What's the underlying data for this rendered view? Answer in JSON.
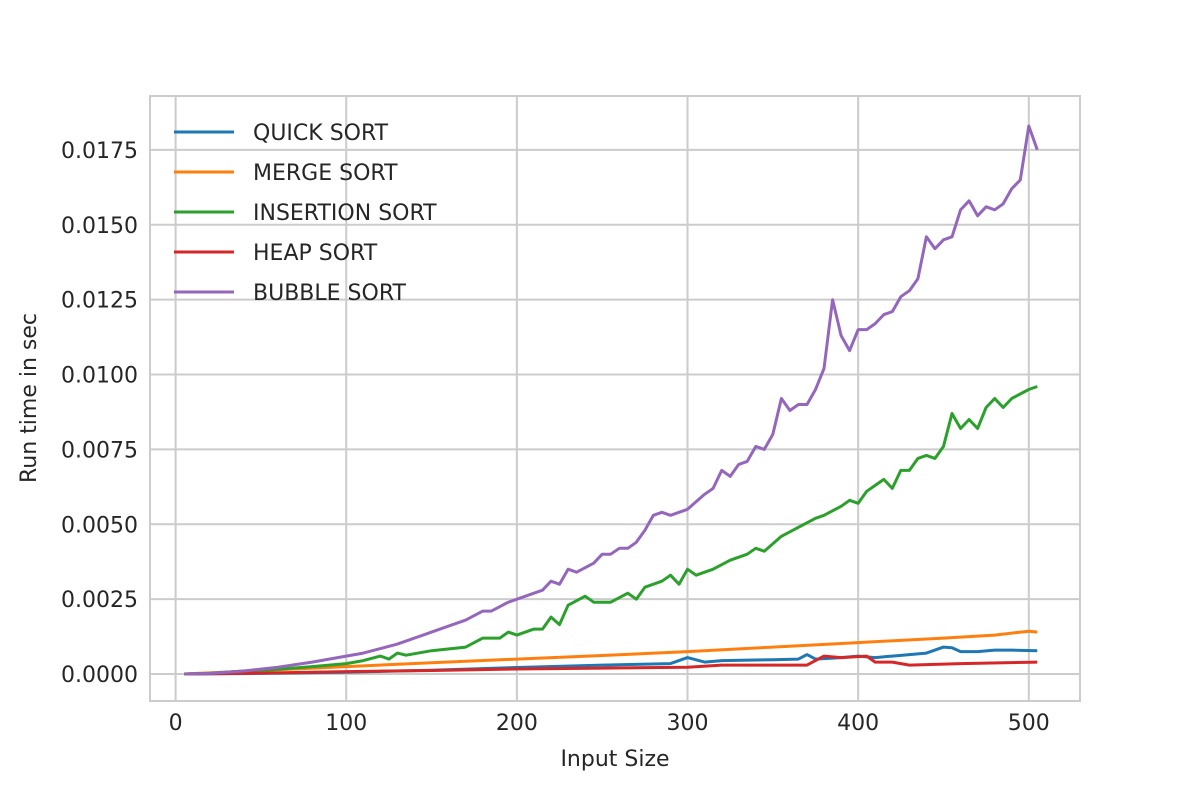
{
  "chart_data": {
    "type": "line",
    "xlabel": "Input Size",
    "ylabel": "Run time in sec",
    "xlim": [
      -15,
      530
    ],
    "ylim": [
      -0.0009,
      0.0193
    ],
    "xticks": [
      0,
      100,
      200,
      300,
      400,
      500
    ],
    "xtick_labels": [
      "0",
      "100",
      "200",
      "300",
      "400",
      "500"
    ],
    "yticks": [
      0,
      0.0025,
      0.005,
      0.0075,
      0.01,
      0.0125,
      0.015,
      0.0175
    ],
    "ytick_labels": [
      "0.0000",
      "0.0025",
      "0.0050",
      "0.0075",
      "0.0100",
      "0.0125",
      "0.0150",
      "0.0175"
    ],
    "grid": true,
    "legend": "top-left",
    "series": [
      {
        "name": "QUICK SORT",
        "color": "#1f77b4",
        "points": [
          [
            5,
            0.0
          ],
          [
            50,
            2e-05
          ],
          [
            100,
            6e-05
          ],
          [
            150,
            0.00013
          ],
          [
            200,
            0.00022
          ],
          [
            250,
            0.0003
          ],
          [
            290,
            0.00035
          ],
          [
            300,
            0.00055
          ],
          [
            310,
            0.0004
          ],
          [
            320,
            0.00045
          ],
          [
            340,
            0.00047
          ],
          [
            350,
            0.00048
          ],
          [
            365,
            0.0005
          ],
          [
            370,
            0.00065
          ],
          [
            375,
            0.0005
          ],
          [
            390,
            0.00055
          ],
          [
            400,
            0.0006
          ],
          [
            410,
            0.00055
          ],
          [
            420,
            0.0006
          ],
          [
            430,
            0.00065
          ],
          [
            440,
            0.0007
          ],
          [
            450,
            0.0009
          ],
          [
            455,
            0.00088
          ],
          [
            460,
            0.00075
          ],
          [
            470,
            0.00075
          ],
          [
            480,
            0.0008
          ],
          [
            490,
            0.0008
          ],
          [
            505,
            0.00078
          ]
        ]
      },
      {
        "name": "MERGE SORT",
        "color": "#ff7f0e",
        "points": [
          [
            5,
            0.0
          ],
          [
            50,
            0.00012
          ],
          [
            100,
            0.00025
          ],
          [
            150,
            0.00038
          ],
          [
            200,
            0.0005
          ],
          [
            250,
            0.00062
          ],
          [
            300,
            0.00075
          ],
          [
            350,
            0.0009
          ],
          [
            400,
            0.00105
          ],
          [
            450,
            0.0012
          ],
          [
            480,
            0.0013
          ],
          [
            500,
            0.00143
          ],
          [
            505,
            0.0014
          ]
        ]
      },
      {
        "name": "INSERTION SORT",
        "color": "#2ca02c",
        "points": [
          [
            5,
            0.0
          ],
          [
            20,
            2e-05
          ],
          [
            40,
            0.0001
          ],
          [
            60,
            0.00016
          ],
          [
            80,
            0.00025
          ],
          [
            100,
            0.00035
          ],
          [
            110,
            0.00045
          ],
          [
            120,
            0.0006
          ],
          [
            125,
            0.0005
          ],
          [
            130,
            0.0007
          ],
          [
            135,
            0.00063
          ],
          [
            150,
            0.00078
          ],
          [
            170,
            0.0009
          ],
          [
            180,
            0.0012
          ],
          [
            190,
            0.0012
          ],
          [
            195,
            0.0014
          ],
          [
            200,
            0.0013
          ],
          [
            210,
            0.0015
          ],
          [
            215,
            0.0015
          ],
          [
            220,
            0.0019
          ],
          [
            225,
            0.00165
          ],
          [
            230,
            0.0023
          ],
          [
            240,
            0.0026
          ],
          [
            245,
            0.0024
          ],
          [
            255,
            0.0024
          ],
          [
            265,
            0.0027
          ],
          [
            270,
            0.0025
          ],
          [
            275,
            0.0029
          ],
          [
            285,
            0.0031
          ],
          [
            290,
            0.0033
          ],
          [
            295,
            0.003
          ],
          [
            300,
            0.0035
          ],
          [
            305,
            0.0033
          ],
          [
            315,
            0.0035
          ],
          [
            325,
            0.0038
          ],
          [
            335,
            0.004
          ],
          [
            340,
            0.0042
          ],
          [
            345,
            0.0041
          ],
          [
            355,
            0.0046
          ],
          [
            365,
            0.0049
          ],
          [
            375,
            0.0052
          ],
          [
            380,
            0.0053
          ],
          [
            390,
            0.0056
          ],
          [
            395,
            0.0058
          ],
          [
            400,
            0.0057
          ],
          [
            405,
            0.0061
          ],
          [
            410,
            0.0063
          ],
          [
            415,
            0.0065
          ],
          [
            420,
            0.0062
          ],
          [
            425,
            0.0068
          ],
          [
            430,
            0.0068
          ],
          [
            435,
            0.0072
          ],
          [
            440,
            0.0073
          ],
          [
            445,
            0.0072
          ],
          [
            450,
            0.0076
          ],
          [
            455,
            0.0087
          ],
          [
            460,
            0.0082
          ],
          [
            465,
            0.0085
          ],
          [
            470,
            0.0082
          ],
          [
            475,
            0.0089
          ],
          [
            480,
            0.0092
          ],
          [
            485,
            0.0089
          ],
          [
            490,
            0.0092
          ],
          [
            500,
            0.0095
          ],
          [
            505,
            0.0096
          ]
        ]
      },
      {
        "name": "HEAP SORT",
        "color": "#d62728",
        "points": [
          [
            5,
            0.0
          ],
          [
            50,
            3e-05
          ],
          [
            100,
            8e-05
          ],
          [
            150,
            0.00012
          ],
          [
            200,
            0.00017
          ],
          [
            250,
            0.0002
          ],
          [
            300,
            0.00023
          ],
          [
            320,
            0.0003
          ],
          [
            370,
            0.0003
          ],
          [
            380,
            0.0006
          ],
          [
            390,
            0.00055
          ],
          [
            405,
            0.0006
          ],
          [
            410,
            0.0004
          ],
          [
            420,
            0.0004
          ],
          [
            430,
            0.0003
          ],
          [
            460,
            0.00035
          ],
          [
            505,
            0.0004
          ]
        ]
      },
      {
        "name": "BUBBLE SORT",
        "color": "#9467bd",
        "points": [
          [
            5,
            0.0
          ],
          [
            20,
            2e-05
          ],
          [
            40,
            0.0001
          ],
          [
            60,
            0.00023
          ],
          [
            80,
            0.0004
          ],
          [
            100,
            0.0006
          ],
          [
            110,
            0.0007
          ],
          [
            120,
            0.00085
          ],
          [
            130,
            0.001
          ],
          [
            140,
            0.0012
          ],
          [
            150,
            0.0014
          ],
          [
            160,
            0.0016
          ],
          [
            170,
            0.0018
          ],
          [
            180,
            0.0021
          ],
          [
            185,
            0.0021
          ],
          [
            195,
            0.0024
          ],
          [
            205,
            0.0026
          ],
          [
            215,
            0.0028
          ],
          [
            220,
            0.0031
          ],
          [
            225,
            0.003
          ],
          [
            230,
            0.0035
          ],
          [
            235,
            0.0034
          ],
          [
            245,
            0.0037
          ],
          [
            250,
            0.004
          ],
          [
            255,
            0.004
          ],
          [
            260,
            0.0042
          ],
          [
            265,
            0.0042
          ],
          [
            270,
            0.0044
          ],
          [
            275,
            0.0048
          ],
          [
            280,
            0.0053
          ],
          [
            285,
            0.0054
          ],
          [
            290,
            0.0053
          ],
          [
            295,
            0.0054
          ],
          [
            300,
            0.0055
          ],
          [
            310,
            0.006
          ],
          [
            315,
            0.0062
          ],
          [
            320,
            0.0068
          ],
          [
            325,
            0.0066
          ],
          [
            330,
            0.007
          ],
          [
            335,
            0.0071
          ],
          [
            340,
            0.0076
          ],
          [
            345,
            0.0075
          ],
          [
            350,
            0.008
          ],
          [
            355,
            0.0092
          ],
          [
            360,
            0.0088
          ],
          [
            365,
            0.009
          ],
          [
            370,
            0.009
          ],
          [
            375,
            0.0095
          ],
          [
            380,
            0.0102
          ],
          [
            385,
            0.0125
          ],
          [
            390,
            0.0113
          ],
          [
            395,
            0.0108
          ],
          [
            400,
            0.0115
          ],
          [
            405,
            0.0115
          ],
          [
            410,
            0.0117
          ],
          [
            415,
            0.012
          ],
          [
            420,
            0.0121
          ],
          [
            425,
            0.0126
          ],
          [
            430,
            0.0128
          ],
          [
            435,
            0.0132
          ],
          [
            440,
            0.0146
          ],
          [
            445,
            0.0142
          ],
          [
            450,
            0.0145
          ],
          [
            455,
            0.0146
          ],
          [
            460,
            0.0155
          ],
          [
            465,
            0.0158
          ],
          [
            470,
            0.0153
          ],
          [
            475,
            0.0156
          ],
          [
            480,
            0.0155
          ],
          [
            485,
            0.0157
          ],
          [
            490,
            0.0162
          ],
          [
            495,
            0.0165
          ],
          [
            500,
            0.0183
          ],
          [
            505,
            0.0175
          ]
        ]
      }
    ]
  }
}
